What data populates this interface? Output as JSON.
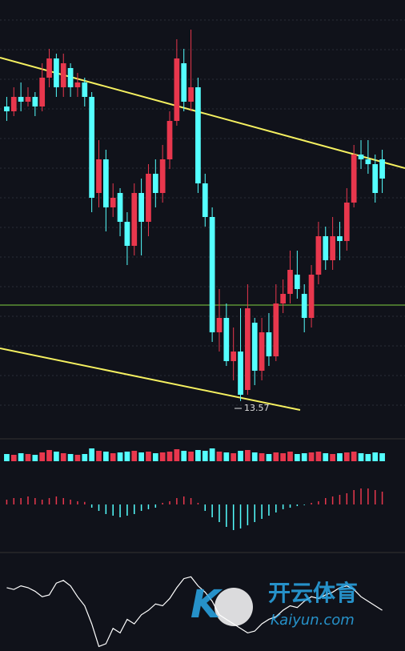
{
  "chart_data": [
    {
      "type": "candlestick",
      "annotation": "13.57",
      "up_color": "#e8374d",
      "down_color": "#54ffff",
      "ylim": [
        13,
        21.5
      ],
      "open": [
        19.7,
        19.6,
        19.9,
        19.8,
        19.9,
        19.7,
        20.3,
        20.7,
        20.1,
        20.5,
        20.1,
        20.2,
        19.9,
        17.9,
        18.6,
        17.6,
        17.9,
        17.3,
        16.8,
        17.9,
        17.3,
        18.3,
        17.9,
        18.6,
        19.4,
        20.6,
        19.8,
        20.1,
        18.1,
        17.4,
        15.0,
        15.3,
        14.4,
        14.6,
        13.8,
        15.2,
        14.2,
        15.0,
        14.5,
        15.6,
        15.8,
        16.2,
        15.8,
        15.3,
        16.2,
        17.0,
        16.5,
        17.0,
        16.9,
        17.7,
        18.7,
        18.6,
        18.5,
        18.6
      ],
      "close": [
        19.6,
        19.9,
        19.8,
        19.9,
        19.7,
        20.3,
        20.7,
        20.1,
        20.6,
        20.1,
        20.2,
        19.9,
        17.8,
        18.6,
        17.6,
        17.8,
        17.3,
        16.8,
        17.9,
        17.3,
        18.3,
        17.9,
        18.6,
        19.4,
        20.7,
        19.8,
        20.1,
        18.1,
        17.4,
        15.0,
        15.3,
        14.4,
        14.6,
        13.7,
        15.5,
        14.2,
        15.0,
        14.5,
        15.6,
        15.8,
        16.3,
        15.9,
        15.3,
        16.2,
        17.0,
        16.5,
        17.0,
        16.9,
        17.7,
        18.7,
        18.6,
        18.5,
        17.9,
        18.2
      ],
      "high": [
        19.9,
        20.1,
        20.2,
        20.1,
        20.0,
        20.6,
        20.9,
        20.8,
        20.8,
        20.6,
        20.4,
        20.3,
        20.0,
        19.0,
        18.8,
        18.1,
        18.0,
        17.5,
        18.1,
        18.2,
        18.5,
        18.6,
        18.9,
        19.6,
        21.1,
        20.9,
        21.3,
        20.3,
        18.3,
        17.6,
        15.9,
        15.6,
        15.1,
        15.5,
        16.0,
        15.3,
        15.3,
        15.4,
        16.0,
        16.1,
        16.7,
        16.7,
        16.0,
        16.4,
        17.3,
        17.2,
        17.4,
        17.3,
        18.0,
        18.9,
        19.0,
        19.0,
        18.7,
        18.8
      ],
      "low": [
        19.4,
        19.5,
        19.6,
        19.7,
        19.5,
        19.6,
        20.1,
        19.9,
        19.9,
        19.9,
        19.9,
        19.7,
        17.5,
        17.6,
        17.1,
        17.4,
        17.0,
        16.4,
        16.6,
        16.6,
        17.0,
        17.6,
        17.7,
        18.4,
        19.3,
        19.6,
        19.6,
        17.9,
        17.2,
        14.8,
        14.6,
        14.3,
        14.0,
        13.57,
        13.7,
        13.9,
        14.0,
        14.3,
        14.4,
        15.4,
        15.6,
        15.7,
        15.0,
        15.1,
        16.0,
        16.3,
        16.3,
        16.5,
        16.7,
        17.6,
        18.4,
        18.3,
        17.7,
        17.9
      ]
    },
    {
      "type": "bar",
      "ylim": [
        0,
        40
      ],
      "values": [
        9,
        8,
        10,
        9,
        8,
        11,
        14,
        12,
        10,
        9,
        8,
        9,
        16,
        13,
        12,
        10,
        11,
        12,
        13,
        11,
        12,
        10,
        11,
        12,
        15,
        13,
        12,
        14,
        13,
        16,
        12,
        11,
        10,
        13,
        14,
        11,
        10,
        9,
        11,
        10,
        12,
        9,
        10,
        11,
        12,
        10,
        9,
        10,
        11,
        12,
        10,
        9,
        11,
        10
      ]
    },
    {
      "type": "macd",
      "ylim": [
        -1,
        1
      ],
      "up_color": "#e8374d",
      "down_color": "#54ffff",
      "values": [
        0.15,
        0.2,
        0.2,
        0.25,
        0.2,
        0.15,
        0.2,
        0.25,
        0.2,
        0.15,
        0.1,
        0.08,
        -0.1,
        -0.2,
        -0.3,
        -0.35,
        -0.4,
        -0.35,
        -0.3,
        -0.2,
        -0.15,
        -0.1,
        0.05,
        0.1,
        0.2,
        0.25,
        0.2,
        0.05,
        -0.2,
        -0.4,
        -0.55,
        -0.7,
        -0.8,
        -0.75,
        -0.65,
        -0.55,
        -0.45,
        -0.35,
        -0.25,
        -0.15,
        -0.1,
        -0.05,
        -0.02,
        0.05,
        0.1,
        0.2,
        0.25,
        0.3,
        0.35,
        0.45,
        0.5,
        0.5,
        0.45,
        0.4
      ]
    },
    {
      "type": "line",
      "ylim": [
        0,
        100
      ],
      "color": "#ffffff",
      "values": [
        70,
        68,
        72,
        70,
        66,
        60,
        62,
        75,
        78,
        72,
        60,
        50,
        30,
        5,
        8,
        25,
        20,
        35,
        30,
        40,
        45,
        52,
        50,
        58,
        70,
        80,
        82,
        72,
        65,
        55,
        40,
        35,
        30,
        25,
        20,
        22,
        30,
        35,
        38,
        45,
        50,
        48,
        55,
        60,
        58,
        62,
        65,
        70,
        72,
        68,
        60,
        55,
        50,
        45
      ]
    }
  ],
  "watermark": {
    "brand": "开云体育",
    "site": "Kaiyun.com"
  }
}
